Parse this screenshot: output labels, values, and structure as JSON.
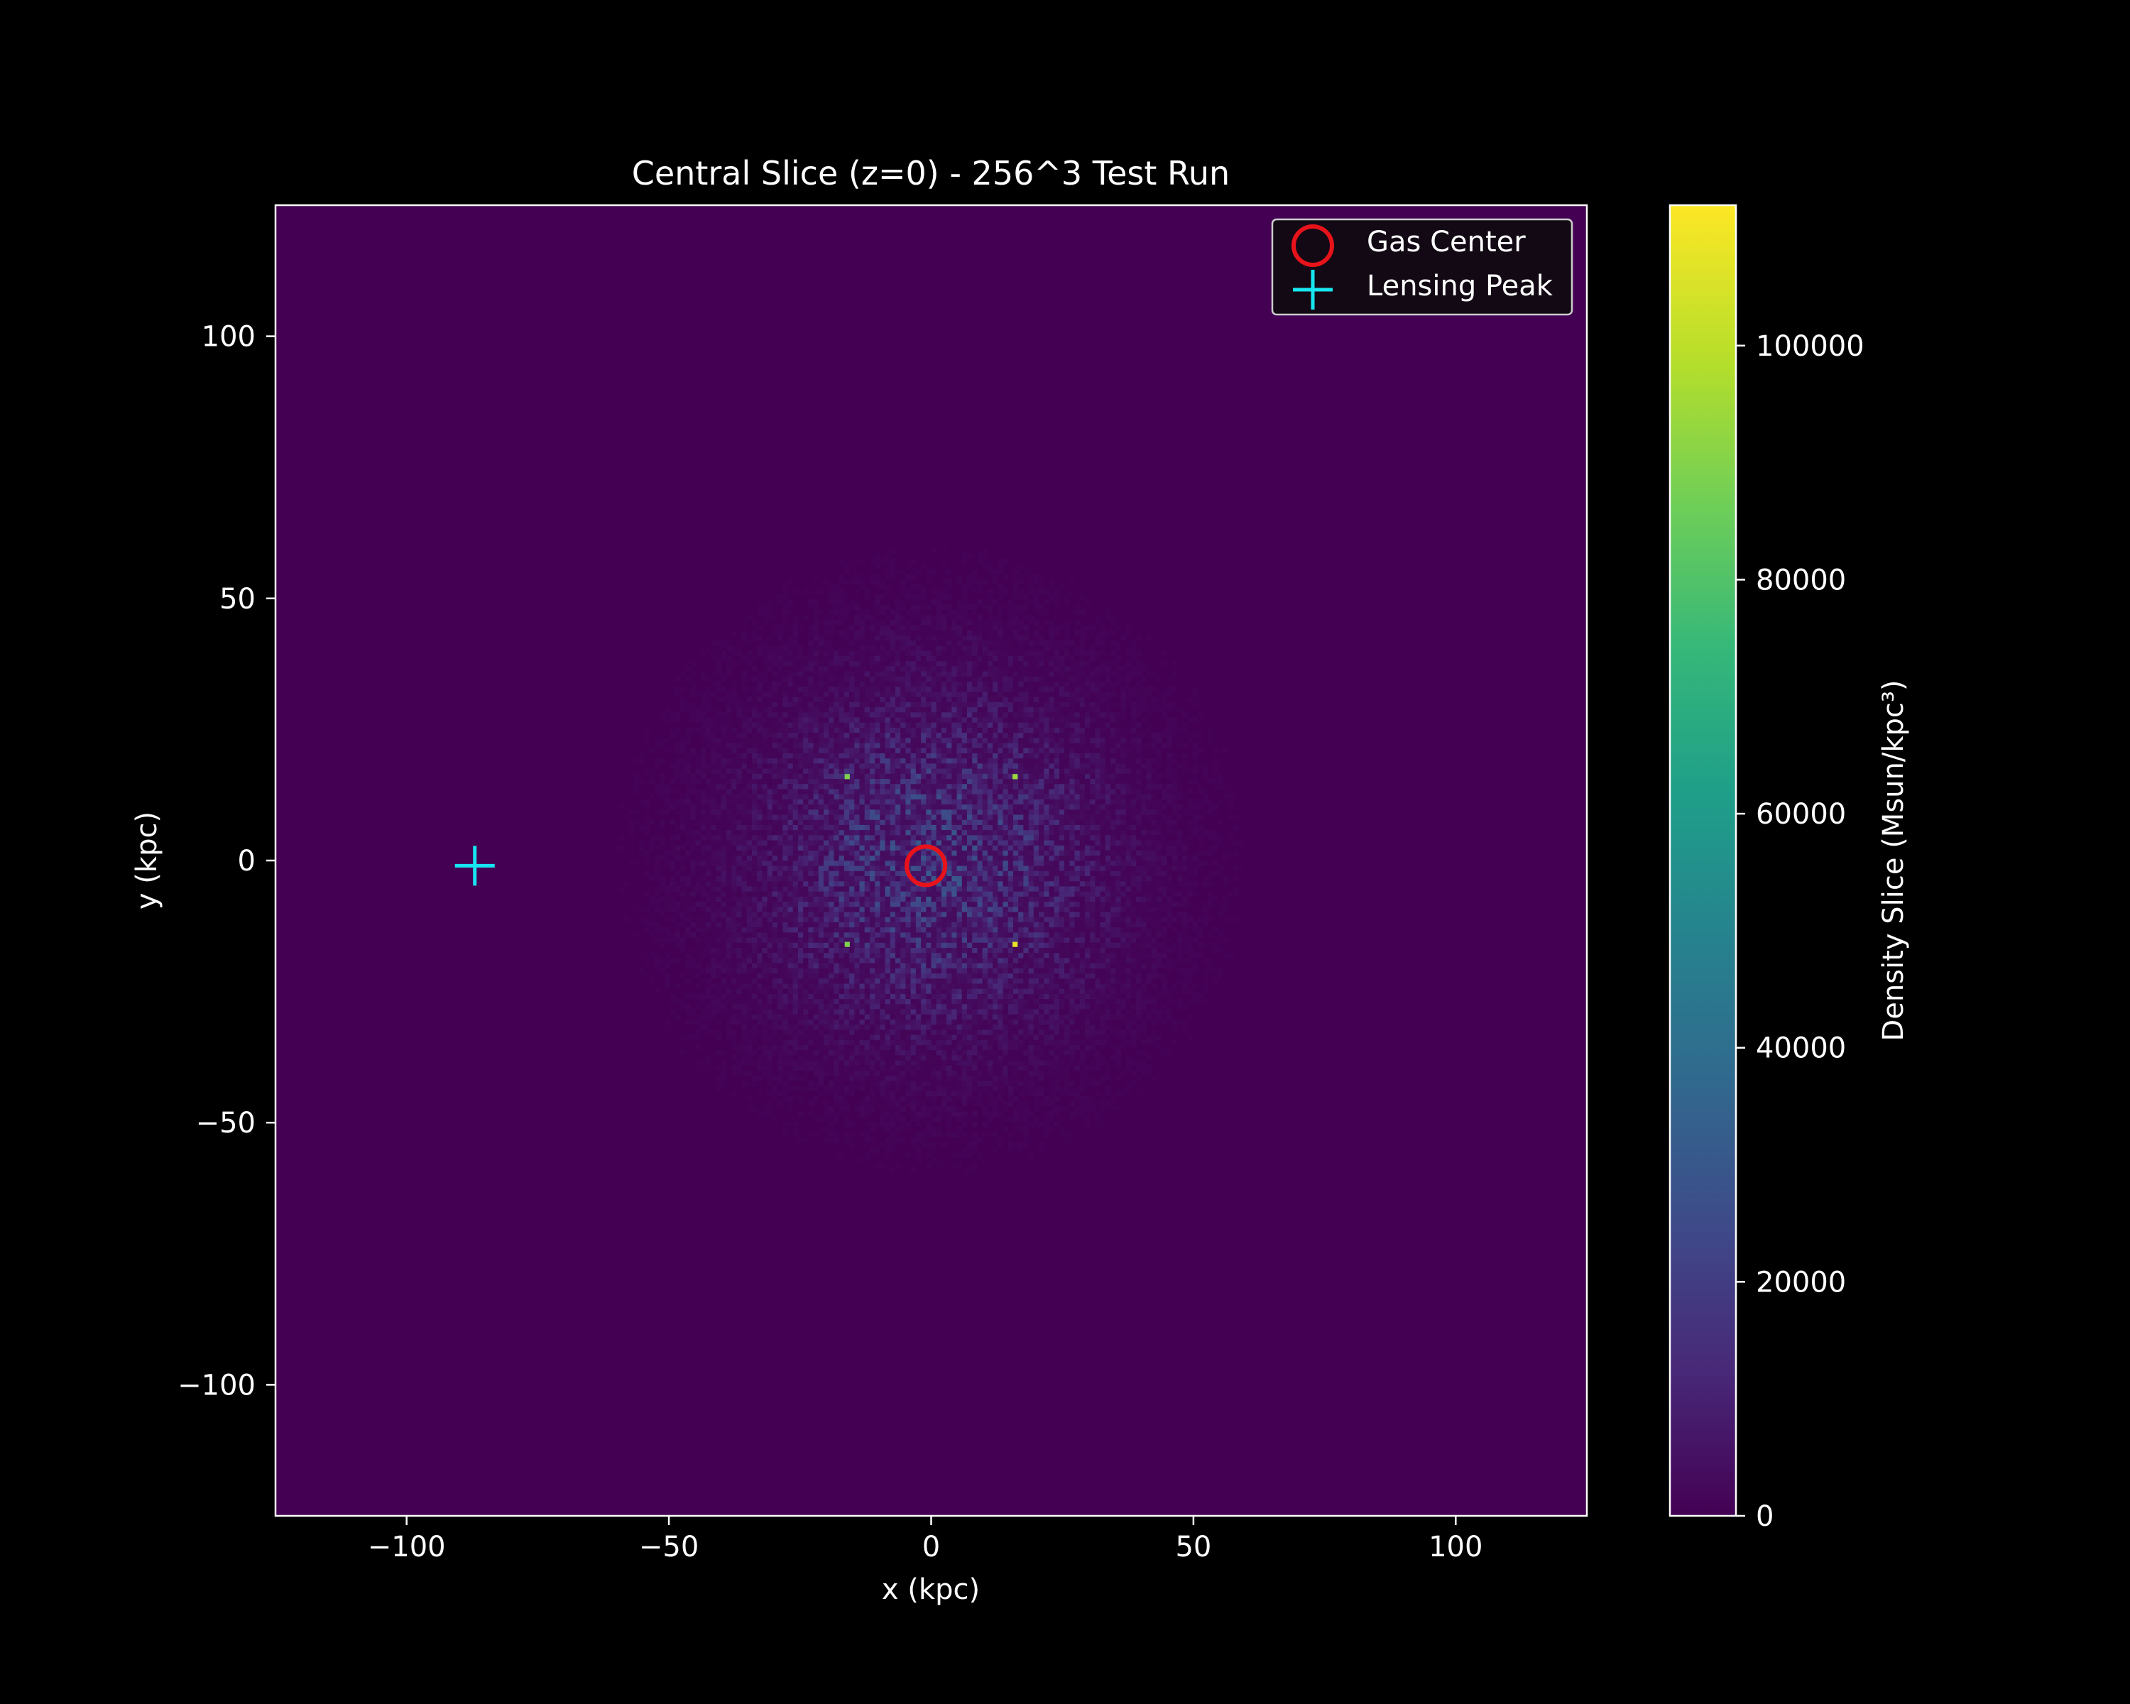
{
  "chart_data": {
    "type": "heatmap",
    "title": "Central Slice (z=0) - 256^3 Test Run",
    "xlabel": "x (kpc)",
    "ylabel": "y (kpc)",
    "xlim": [
      -125,
      125
    ],
    "ylim": [
      -125,
      125
    ],
    "x_ticks": [
      -100,
      -50,
      0,
      50,
      100
    ],
    "y_ticks": [
      -100,
      -50,
      0,
      50,
      100
    ],
    "x_tick_labels": [
      "−100",
      "−50",
      "0",
      "50",
      "100"
    ],
    "y_tick_labels": [
      "−100",
      "−50",
      "0",
      "50",
      "100"
    ],
    "grid": false,
    "colormap": "viridis",
    "colorbar": {
      "label": "Density Slice (Msun/kpc³)",
      "range": [
        0,
        112000
      ],
      "ticks": [
        0,
        20000,
        40000,
        60000,
        80000,
        100000
      ],
      "tick_labels": [
        "0",
        "20000",
        "40000",
        "60000",
        "80000",
        "100000"
      ]
    },
    "field": {
      "grid_resolution": 256,
      "center": [
        0,
        0
      ],
      "background_value": 0,
      "typical_core_value": 15000,
      "extent_radius_kpc": 60,
      "bright_spots": [
        {
          "x": -16,
          "y": 16,
          "value": 90000
        },
        {
          "x": 16,
          "y": 16,
          "value": 95000
        },
        {
          "x": -16,
          "y": -16,
          "value": 90000
        },
        {
          "x": 16,
          "y": -16,
          "value": 108000
        }
      ]
    },
    "markers": [
      {
        "name": "Gas Center",
        "x": -1,
        "y": -1,
        "symbol": "circle",
        "color": "#e8131a"
      },
      {
        "name": "Lensing Peak",
        "x": -87,
        "y": -1,
        "symbol": "plus",
        "color": "#17e6f0"
      }
    ],
    "legend": {
      "placement": "top-right",
      "entries": [
        "Gas Center",
        "Lensing Peak"
      ]
    }
  }
}
